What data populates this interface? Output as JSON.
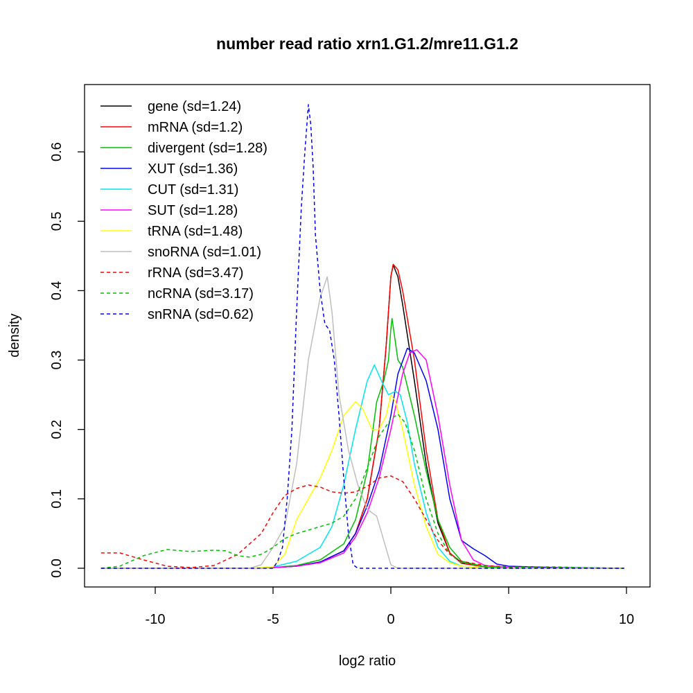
{
  "chart_data": {
    "type": "line",
    "title": "number read ratio xrn1.G1.2/mre11.G1.2",
    "xlabel": "log2 ratio",
    "ylabel": "density",
    "xlim": [
      -13,
      11
    ],
    "ylim": [
      -0.027,
      0.697
    ],
    "x_ticks": [
      -10,
      -5,
      0,
      5,
      10
    ],
    "x_tick_labels": [
      "-10",
      "-5",
      "0",
      "5",
      "10"
    ],
    "y_ticks": [
      0.0,
      0.1,
      0.2,
      0.3,
      0.4,
      0.5,
      0.6
    ],
    "y_tick_labels": [
      "0.0",
      "0.1",
      "0.2",
      "0.3",
      "0.4",
      "0.5",
      "0.6"
    ],
    "legend_position": "top-left",
    "series": [
      {
        "name": "gene (sd=1.24)",
        "color": "#000000",
        "dash": false,
        "points": [
          [
            -12.3,
            0
          ],
          [
            -6,
            0
          ],
          [
            -5,
            0.001
          ],
          [
            -4,
            0.003
          ],
          [
            -3,
            0.009
          ],
          [
            -2,
            0.025
          ],
          [
            -1.5,
            0.05
          ],
          [
            -1,
            0.1
          ],
          [
            -0.5,
            0.2
          ],
          [
            -0.2,
            0.32
          ],
          [
            0,
            0.42
          ],
          [
            0.1,
            0.437
          ],
          [
            0.3,
            0.42
          ],
          [
            0.5,
            0.38
          ],
          [
            1,
            0.27
          ],
          [
            1.5,
            0.15
          ],
          [
            2,
            0.065
          ],
          [
            2.5,
            0.022
          ],
          [
            3,
            0.008
          ],
          [
            4,
            0.002
          ],
          [
            5,
            0
          ],
          [
            9.9,
            0
          ]
        ]
      },
      {
        "name": "mRNA (sd=1.2)",
        "color": "#ff0000",
        "dash": false,
        "points": [
          [
            -12.3,
            0
          ],
          [
            -6,
            0
          ],
          [
            -5,
            0.001
          ],
          [
            -4,
            0.003
          ],
          [
            -3,
            0.009
          ],
          [
            -2,
            0.025
          ],
          [
            -1.5,
            0.05
          ],
          [
            -1,
            0.1
          ],
          [
            -0.5,
            0.2
          ],
          [
            -0.2,
            0.32
          ],
          [
            0,
            0.42
          ],
          [
            0.1,
            0.438
          ],
          [
            0.3,
            0.43
          ],
          [
            0.5,
            0.4
          ],
          [
            1,
            0.3
          ],
          [
            1.5,
            0.17
          ],
          [
            2,
            0.07
          ],
          [
            2.5,
            0.022
          ],
          [
            3,
            0.007
          ],
          [
            4,
            0.002
          ],
          [
            5,
            0
          ],
          [
            9.9,
            0
          ]
        ]
      },
      {
        "name": "divergent (sd=1.28)",
        "color": "#00c000",
        "dash": false,
        "points": [
          [
            -12.3,
            0
          ],
          [
            -6,
            0
          ],
          [
            -5,
            0.001
          ],
          [
            -4,
            0.004
          ],
          [
            -3,
            0.012
          ],
          [
            -2,
            0.035
          ],
          [
            -1.5,
            0.07
          ],
          [
            -1,
            0.14
          ],
          [
            -0.6,
            0.24
          ],
          [
            -0.3,
            0.27
          ],
          [
            -0.1,
            0.3
          ],
          [
            0,
            0.345
          ],
          [
            0.05,
            0.36
          ],
          [
            0.3,
            0.3
          ],
          [
            0.5,
            0.29
          ],
          [
            1,
            0.22
          ],
          [
            1.5,
            0.14
          ],
          [
            2,
            0.07
          ],
          [
            2.5,
            0.03
          ],
          [
            3,
            0.01
          ],
          [
            4,
            0.002
          ],
          [
            5,
            0
          ],
          [
            9.9,
            0
          ]
        ]
      },
      {
        "name": "XUT (sd=1.36)",
        "color": "#0000ff",
        "dash": false,
        "points": [
          [
            -12.3,
            0
          ],
          [
            -6,
            0
          ],
          [
            -5,
            0.001
          ],
          [
            -4,
            0.003
          ],
          [
            -3,
            0.009
          ],
          [
            -2,
            0.025
          ],
          [
            -1.5,
            0.05
          ],
          [
            -1,
            0.09
          ],
          [
            -0.5,
            0.14
          ],
          [
            0,
            0.22
          ],
          [
            0.3,
            0.28
          ],
          [
            0.7,
            0.317
          ],
          [
            1,
            0.31
          ],
          [
            1.5,
            0.27
          ],
          [
            2,
            0.2
          ],
          [
            2.5,
            0.1
          ],
          [
            3,
            0.04
          ],
          [
            3.5,
            0.028
          ],
          [
            4,
            0.018
          ],
          [
            4.5,
            0.006
          ],
          [
            5,
            0.003
          ],
          [
            6,
            0.002
          ],
          [
            7,
            0.001
          ],
          [
            9.9,
            0
          ]
        ]
      },
      {
        "name": "CUT (sd=1.31)",
        "color": "#00e5ee",
        "dash": false,
        "points": [
          [
            -12.3,
            0
          ],
          [
            -6,
            0
          ],
          [
            -5,
            0.002
          ],
          [
            -4,
            0.01
          ],
          [
            -3,
            0.03
          ],
          [
            -2.5,
            0.06
          ],
          [
            -2,
            0.12
          ],
          [
            -1.5,
            0.2
          ],
          [
            -1,
            0.27
          ],
          [
            -0.7,
            0.293
          ],
          [
            -0.4,
            0.27
          ],
          [
            -0.1,
            0.25
          ],
          [
            0.2,
            0.255
          ],
          [
            0.4,
            0.25
          ],
          [
            0.7,
            0.21
          ],
          [
            1,
            0.15
          ],
          [
            1.5,
            0.08
          ],
          [
            2,
            0.03
          ],
          [
            2.5,
            0.01
          ],
          [
            3,
            0.003
          ],
          [
            4,
            0
          ],
          [
            9.9,
            0
          ]
        ]
      },
      {
        "name": "SUT (sd=1.28)",
        "color": "#ff00ff",
        "dash": false,
        "points": [
          [
            -12.3,
            0
          ],
          [
            -6,
            0
          ],
          [
            -5,
            0.001
          ],
          [
            -4,
            0.003
          ],
          [
            -3,
            0.008
          ],
          [
            -2,
            0.022
          ],
          [
            -1.5,
            0.045
          ],
          [
            -1,
            0.08
          ],
          [
            -0.5,
            0.13
          ],
          [
            0,
            0.2
          ],
          [
            0.5,
            0.28
          ],
          [
            0.8,
            0.31
          ],
          [
            1.1,
            0.315
          ],
          [
            1.5,
            0.3
          ],
          [
            2,
            0.22
          ],
          [
            2.5,
            0.12
          ],
          [
            3,
            0.04
          ],
          [
            3.5,
            0.012
          ],
          [
            4,
            0.004
          ],
          [
            5,
            0.001
          ],
          [
            6,
            0
          ],
          [
            9.9,
            0
          ]
        ]
      },
      {
        "name": "tRNA (sd=1.48)",
        "color": "#ffff00",
        "dash": false,
        "points": [
          [
            -12.3,
            0
          ],
          [
            -6,
            0
          ],
          [
            -5,
            0.002
          ],
          [
            -4.5,
            0.02
          ],
          [
            -4,
            0.07
          ],
          [
            -3.5,
            0.1
          ],
          [
            -3,
            0.13
          ],
          [
            -2.5,
            0.17
          ],
          [
            -2,
            0.22
          ],
          [
            -1.5,
            0.24
          ],
          [
            -1.2,
            0.23
          ],
          [
            -0.8,
            0.2
          ],
          [
            -0.5,
            0.2
          ],
          [
            -0.2,
            0.22
          ],
          [
            0,
            0.25
          ],
          [
            0.2,
            0.24
          ],
          [
            0.5,
            0.2
          ],
          [
            1,
            0.12
          ],
          [
            1.5,
            0.06
          ],
          [
            2,
            0.02
          ],
          [
            2.5,
            0.008
          ],
          [
            3,
            0.003
          ],
          [
            4,
            0
          ],
          [
            9.9,
            0
          ]
        ]
      },
      {
        "name": "snoRNA (sd=1.01)",
        "color": "#bebebe",
        "dash": false,
        "points": [
          [
            -12.3,
            0
          ],
          [
            -6,
            0
          ],
          [
            -5.5,
            0.005
          ],
          [
            -5,
            0.03
          ],
          [
            -4.5,
            0.06
          ],
          [
            -4,
            0.15
          ],
          [
            -3.5,
            0.3
          ],
          [
            -3,
            0.39
          ],
          [
            -2.7,
            0.42
          ],
          [
            -2.5,
            0.37
          ],
          [
            -2.2,
            0.25
          ],
          [
            -1.8,
            0.17
          ],
          [
            -1.4,
            0.12
          ],
          [
            -1,
            0.085
          ],
          [
            -0.6,
            0.075
          ],
          [
            -0.3,
            0.04
          ],
          [
            0,
            0.005
          ],
          [
            0.3,
            0
          ],
          [
            9.9,
            0
          ]
        ]
      },
      {
        "name": "rRNA (sd=3.47)",
        "color": "#ff0000",
        "dash": true,
        "points": [
          [
            -12.3,
            0.022
          ],
          [
            -11.5,
            0.022
          ],
          [
            -10.5,
            0.012
          ],
          [
            -9.5,
            0.003
          ],
          [
            -8.5,
            0.001
          ],
          [
            -7.5,
            0.004
          ],
          [
            -6.5,
            0.02
          ],
          [
            -5.5,
            0.05
          ],
          [
            -5,
            0.08
          ],
          [
            -4.5,
            0.105
          ],
          [
            -4,
            0.115
          ],
          [
            -3.5,
            0.12
          ],
          [
            -3,
            0.117
          ],
          [
            -2.5,
            0.11
          ],
          [
            -2,
            0.108
          ],
          [
            -1.5,
            0.11
          ],
          [
            -1,
            0.118
          ],
          [
            -0.5,
            0.13
          ],
          [
            0,
            0.133
          ],
          [
            0.5,
            0.125
          ],
          [
            1,
            0.1
          ],
          [
            1.5,
            0.07
          ],
          [
            2,
            0.04
          ],
          [
            2.5,
            0.02
          ],
          [
            3,
            0.01
          ],
          [
            4,
            0.004
          ],
          [
            5,
            0.002
          ],
          [
            6,
            0.002
          ],
          [
            7,
            0.001
          ],
          [
            9.9,
            0
          ]
        ]
      },
      {
        "name": "ncRNA (sd=3.17)",
        "color": "#00c000",
        "dash": true,
        "points": [
          [
            -12.3,
            0
          ],
          [
            -11.5,
            0.003
          ],
          [
            -10.5,
            0.018
          ],
          [
            -9.5,
            0.027
          ],
          [
            -8.5,
            0.024
          ],
          [
            -7.5,
            0.026
          ],
          [
            -7,
            0.025
          ],
          [
            -6.5,
            0.018
          ],
          [
            -6,
            0.016
          ],
          [
            -5.5,
            0.02
          ],
          [
            -5,
            0.03
          ],
          [
            -4.5,
            0.043
          ],
          [
            -4,
            0.05
          ],
          [
            -3.5,
            0.055
          ],
          [
            -3,
            0.06
          ],
          [
            -2.5,
            0.065
          ],
          [
            -2,
            0.075
          ],
          [
            -1.5,
            0.1
          ],
          [
            -1,
            0.145
          ],
          [
            -0.5,
            0.19
          ],
          [
            0,
            0.215
          ],
          [
            0.3,
            0.222
          ],
          [
            0.6,
            0.21
          ],
          [
            1,
            0.17
          ],
          [
            1.5,
            0.1
          ],
          [
            2,
            0.05
          ],
          [
            2.5,
            0.02
          ],
          [
            3,
            0.008
          ],
          [
            4,
            0.003
          ],
          [
            5,
            0.001
          ],
          [
            6,
            0.002
          ],
          [
            7,
            0.002
          ],
          [
            8,
            0.001
          ],
          [
            9.9,
            0
          ]
        ]
      },
      {
        "name": "snRNA (sd=0.62)",
        "color": "#0000ff",
        "dash": true,
        "points": [
          [
            -12.3,
            0
          ],
          [
            -5,
            0
          ],
          [
            -4.8,
            0.01
          ],
          [
            -4.6,
            0.03
          ],
          [
            -4.4,
            0.1
          ],
          [
            -4.2,
            0.2
          ],
          [
            -4,
            0.37
          ],
          [
            -3.8,
            0.52
          ],
          [
            -3.65,
            0.6
          ],
          [
            -3.5,
            0.668
          ],
          [
            -3.4,
            0.64
          ],
          [
            -3.3,
            0.58
          ],
          [
            -3.2,
            0.48
          ],
          [
            -3,
            0.4
          ],
          [
            -2.8,
            0.352
          ],
          [
            -2.6,
            0.343
          ],
          [
            -2.4,
            0.3
          ],
          [
            -2.2,
            0.22
          ],
          [
            -2,
            0.13
          ],
          [
            -1.8,
            0.05
          ],
          [
            -1.6,
            0.005
          ],
          [
            -1.4,
            0
          ],
          [
            9.9,
            0
          ]
        ]
      }
    ]
  }
}
